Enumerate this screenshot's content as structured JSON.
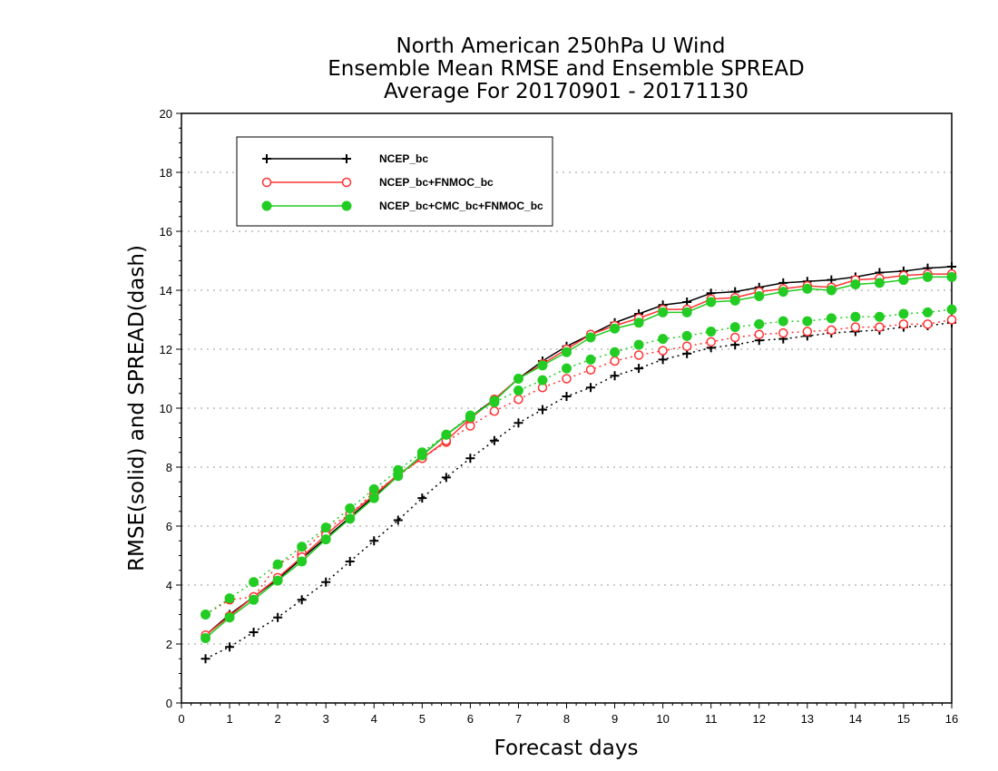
{
  "chart_data": {
    "type": "line",
    "title": "North American 250hPa U Wind",
    "subtitle": "Ensemble Mean RMSE and Ensemble SPREAD",
    "subtitle2": "Average For 20170901 - 20171130",
    "xlabel": "Forecast days",
    "ylabel": "RMSE(solid) and SPREAD(dash)",
    "xlim": [
      0,
      16
    ],
    "ylim": [
      0,
      20
    ],
    "xticks": [
      "0",
      "1",
      "2",
      "3",
      "4",
      "5",
      "6",
      "7",
      "8",
      "9",
      "10",
      "11",
      "12",
      "13",
      "14",
      "15",
      "16"
    ],
    "yticks": [
      "0",
      "2",
      "4",
      "6",
      "8",
      "10",
      "12",
      "14",
      "16",
      "18",
      "20"
    ],
    "grid": true,
    "legend_position": "top-left",
    "x": [
      0.5,
      1,
      1.5,
      2,
      2.5,
      3,
      3.5,
      4,
      4.5,
      5,
      5.5,
      6,
      6.5,
      7,
      7.5,
      8,
      8.5,
      9,
      9.5,
      10,
      10.5,
      11,
      11.5,
      12,
      12.5,
      13,
      13.5,
      14,
      14.5,
      15,
      15.5,
      16
    ],
    "series": [
      {
        "name": "NCEP_bc",
        "color": "#000000",
        "marker": "plus",
        "rmse": [
          2.3,
          3.0,
          3.6,
          4.2,
          4.9,
          5.6,
          6.3,
          7.0,
          7.7,
          8.4,
          9.1,
          9.7,
          10.3,
          11.0,
          11.6,
          12.1,
          12.5,
          12.9,
          13.2,
          13.5,
          13.6,
          13.9,
          13.95,
          14.1,
          14.25,
          14.3,
          14.35,
          14.45,
          14.6,
          14.65,
          14.75,
          14.8
        ],
        "spread": [
          1.5,
          1.9,
          2.4,
          2.9,
          3.5,
          4.1,
          4.8,
          5.5,
          6.2,
          6.95,
          7.65,
          8.3,
          8.9,
          9.5,
          9.95,
          10.4,
          10.7,
          11.1,
          11.35,
          11.65,
          11.85,
          12.05,
          12.15,
          12.3,
          12.35,
          12.45,
          12.55,
          12.6,
          12.65,
          12.75,
          12.8,
          12.9
        ]
      },
      {
        "name": "NCEP_bc+FNMOC_bc",
        "color": "#ff3333",
        "marker": "open-circle",
        "rmse": [
          2.3,
          2.95,
          3.6,
          4.25,
          4.95,
          5.7,
          6.4,
          7.05,
          7.75,
          8.3,
          8.9,
          9.65,
          10.3,
          11.0,
          11.5,
          12.0,
          12.5,
          12.8,
          13.05,
          13.35,
          13.35,
          13.7,
          13.75,
          13.95,
          14.05,
          14.15,
          14.1,
          14.35,
          14.4,
          14.5,
          14.55,
          14.55
        ],
        "spread": [
          3.0,
          3.5,
          3.6,
          4.7,
          5.1,
          5.9,
          6.4,
          7.15,
          7.7,
          8.3,
          8.85,
          9.4,
          9.9,
          10.3,
          10.7,
          11.0,
          11.3,
          11.6,
          11.8,
          11.95,
          12.1,
          12.25,
          12.4,
          12.5,
          12.55,
          12.6,
          12.65,
          12.75,
          12.75,
          12.85,
          12.85,
          13.0
        ]
      },
      {
        "name": "NCEP_bc+CMC_bc+FNMOC_bc",
        "color": "#22cc22",
        "marker": "filled-circle",
        "rmse": [
          2.2,
          2.9,
          3.5,
          4.15,
          4.8,
          5.55,
          6.25,
          6.95,
          7.7,
          8.4,
          9.1,
          9.7,
          10.25,
          11.0,
          11.45,
          11.9,
          12.4,
          12.7,
          12.9,
          13.25,
          13.25,
          13.6,
          13.65,
          13.8,
          13.95,
          14.05,
          14.0,
          14.2,
          14.25,
          14.35,
          14.45,
          14.45
        ],
        "spread": [
          3.0,
          3.55,
          4.1,
          4.7,
          5.3,
          5.95,
          6.6,
          7.25,
          7.9,
          8.5,
          9.1,
          9.75,
          10.2,
          10.6,
          10.95,
          11.35,
          11.65,
          11.9,
          12.15,
          12.35,
          12.45,
          12.6,
          12.75,
          12.85,
          12.95,
          12.95,
          13.05,
          13.1,
          13.1,
          13.2,
          13.25,
          13.35
        ]
      }
    ]
  }
}
